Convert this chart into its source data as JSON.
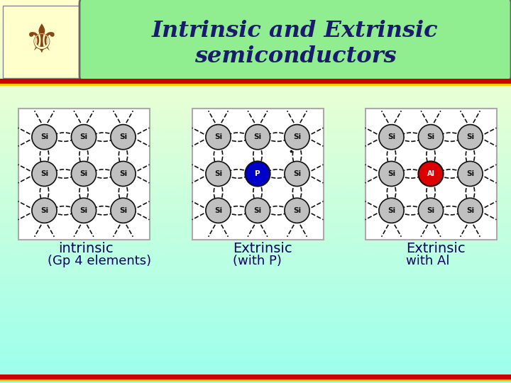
{
  "title_line1": "Intrinsic and Extrinsic",
  "title_line2": "semiconductors",
  "title_box_color": "#90ee90",
  "title_text_color": "#1a1a6e",
  "bg_color": "#ffffcc",
  "bg_color_bottom": "#ccffee",
  "red_line_color": "#cc0000",
  "yellow_line_color": "#ffcc00",
  "label1_line1": "intrinsic",
  "label1_line2": "(Gp 4 elements)",
  "label2_line1": "Extrinsic",
  "label2_line2": "(with P)",
  "label3_line1": "Extrinsic",
  "label3_line2": "with Al",
  "label_color": "#000066",
  "si_fill": "#c0c0c0",
  "si_stroke": "#222222",
  "p_fill": "#0000cc",
  "p_stroke": "#000000",
  "al_fill": "#dd0000",
  "al_stroke": "#000000",
  "diagram_bg": "#ffffff",
  "diagram_border": "#aaaaaa",
  "coa_bg": "#ffffcc"
}
